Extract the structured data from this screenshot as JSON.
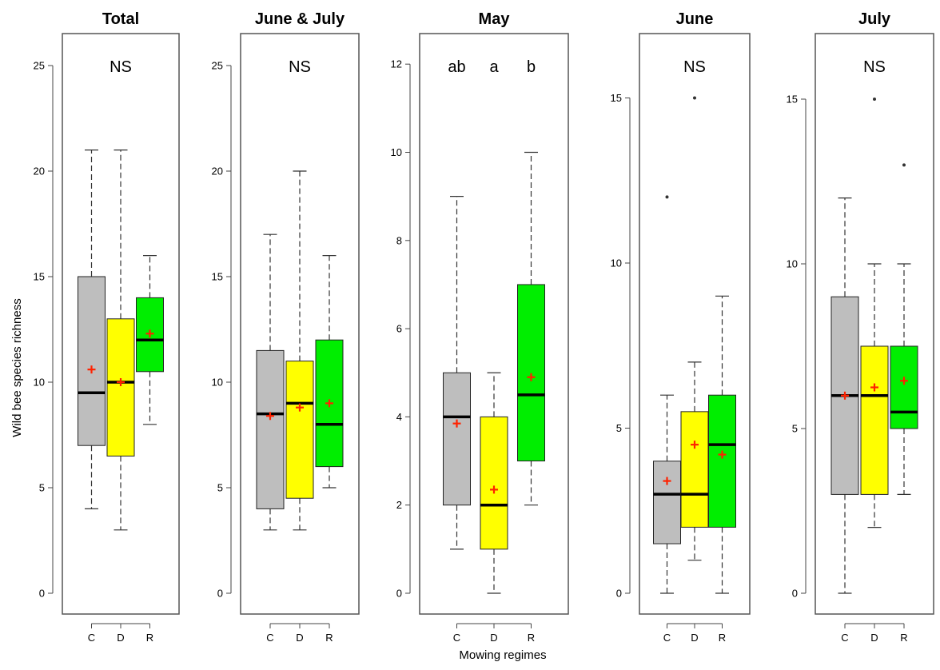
{
  "figure": {
    "ylabel": "Wild bee species richness",
    "xlabel": "Mowing regimes",
    "colors": {
      "C": "#bebebe",
      "D": "#ffff00",
      "R": "#00ee00",
      "mean_marker": "#ff2200"
    }
  },
  "chart_data": [
    {
      "type": "boxplot",
      "title": "Total",
      "annotation": [
        "NS"
      ],
      "categories": [
        "C",
        "D",
        "R"
      ],
      "ylim": [
        0,
        26
      ],
      "yticks": [
        0,
        5,
        10,
        15,
        20,
        25
      ],
      "boxes": [
        {
          "category": "C",
          "whisker_low": 4,
          "q1": 7,
          "median": 9.5,
          "q3": 15,
          "whisker_high": 21,
          "mean": 10.6,
          "outliers": []
        },
        {
          "category": "D",
          "whisker_low": 3,
          "q1": 6.5,
          "median": 10,
          "q3": 13,
          "whisker_high": 21,
          "mean": 10,
          "outliers": []
        },
        {
          "category": "R",
          "whisker_low": 8,
          "q1": 10.5,
          "median": 12,
          "q3": 14,
          "whisker_high": 16,
          "mean": 12.3,
          "outliers": []
        }
      ]
    },
    {
      "type": "boxplot",
      "title": "June & July",
      "annotation": [
        "NS"
      ],
      "categories": [
        "C",
        "D",
        "R"
      ],
      "ylim": [
        0,
        26
      ],
      "yticks": [
        0,
        5,
        10,
        15,
        20,
        25
      ],
      "boxes": [
        {
          "category": "C",
          "whisker_low": 3,
          "q1": 4,
          "median": 8.5,
          "q3": 11.5,
          "whisker_high": 17,
          "mean": 8.4,
          "outliers": []
        },
        {
          "category": "D",
          "whisker_low": 3,
          "q1": 4.5,
          "median": 9,
          "q3": 11,
          "whisker_high": 20,
          "mean": 8.8,
          "outliers": []
        },
        {
          "category": "R",
          "whisker_low": 5,
          "q1": 6,
          "median": 8,
          "q3": 12,
          "whisker_high": 16,
          "mean": 9,
          "outliers": []
        }
      ]
    },
    {
      "type": "boxplot",
      "title": "May",
      "annotation": [
        "ab",
        "a",
        "b"
      ],
      "categories": [
        "C",
        "D",
        "R"
      ],
      "ylim": [
        0,
        12.4
      ],
      "yticks": [
        0,
        2,
        4,
        6,
        8,
        10,
        12
      ],
      "boxes": [
        {
          "category": "C",
          "whisker_low": 1,
          "q1": 2,
          "median": 4,
          "q3": 5,
          "whisker_high": 9,
          "mean": 3.85,
          "outliers": []
        },
        {
          "category": "D",
          "whisker_low": 0,
          "q1": 1,
          "median": 2,
          "q3": 4,
          "whisker_high": 5,
          "mean": 2.35,
          "outliers": []
        },
        {
          "category": "R",
          "whisker_low": 2,
          "q1": 3,
          "median": 4.5,
          "q3": 7,
          "whisker_high": 10,
          "mean": 4.9,
          "outliers": []
        }
      ]
    },
    {
      "type": "boxplot",
      "title": "June",
      "annotation": [
        "NS"
      ],
      "categories": [
        "C",
        "D",
        "R"
      ],
      "ylim": [
        0,
        16.5
      ],
      "yticks": [
        0,
        5,
        10,
        15
      ],
      "boxes": [
        {
          "category": "C",
          "whisker_low": 0,
          "q1": 1.5,
          "median": 3,
          "q3": 4,
          "whisker_high": 6,
          "mean": 3.4,
          "outliers": [
            12
          ]
        },
        {
          "category": "D",
          "whisker_low": 1,
          "q1": 2,
          "median": 3,
          "q3": 5.5,
          "whisker_high": 7,
          "mean": 4.5,
          "outliers": [
            15
          ]
        },
        {
          "category": "R",
          "whisker_low": 0,
          "q1": 2,
          "median": 4.5,
          "q3": 6,
          "whisker_high": 9,
          "mean": 4.2,
          "outliers": []
        }
      ]
    },
    {
      "type": "boxplot",
      "title": "July",
      "annotation": [
        "NS"
      ],
      "categories": [
        "C",
        "D",
        "R"
      ],
      "ylim": [
        0,
        16.5
      ],
      "yticks": [
        0,
        5,
        10,
        15
      ],
      "boxes": [
        {
          "category": "C",
          "whisker_low": 0,
          "q1": 3,
          "median": 6,
          "q3": 9,
          "whisker_high": 12,
          "mean": 6,
          "outliers": []
        },
        {
          "category": "D",
          "whisker_low": 2,
          "q1": 3,
          "median": 6,
          "q3": 7.5,
          "whisker_high": 10,
          "mean": 6.25,
          "outliers": [
            15
          ]
        },
        {
          "category": "R",
          "whisker_low": 3,
          "q1": 5,
          "median": 5.5,
          "q3": 7.5,
          "whisker_high": 10,
          "mean": 6.45,
          "outliers": [
            13
          ]
        }
      ]
    }
  ]
}
